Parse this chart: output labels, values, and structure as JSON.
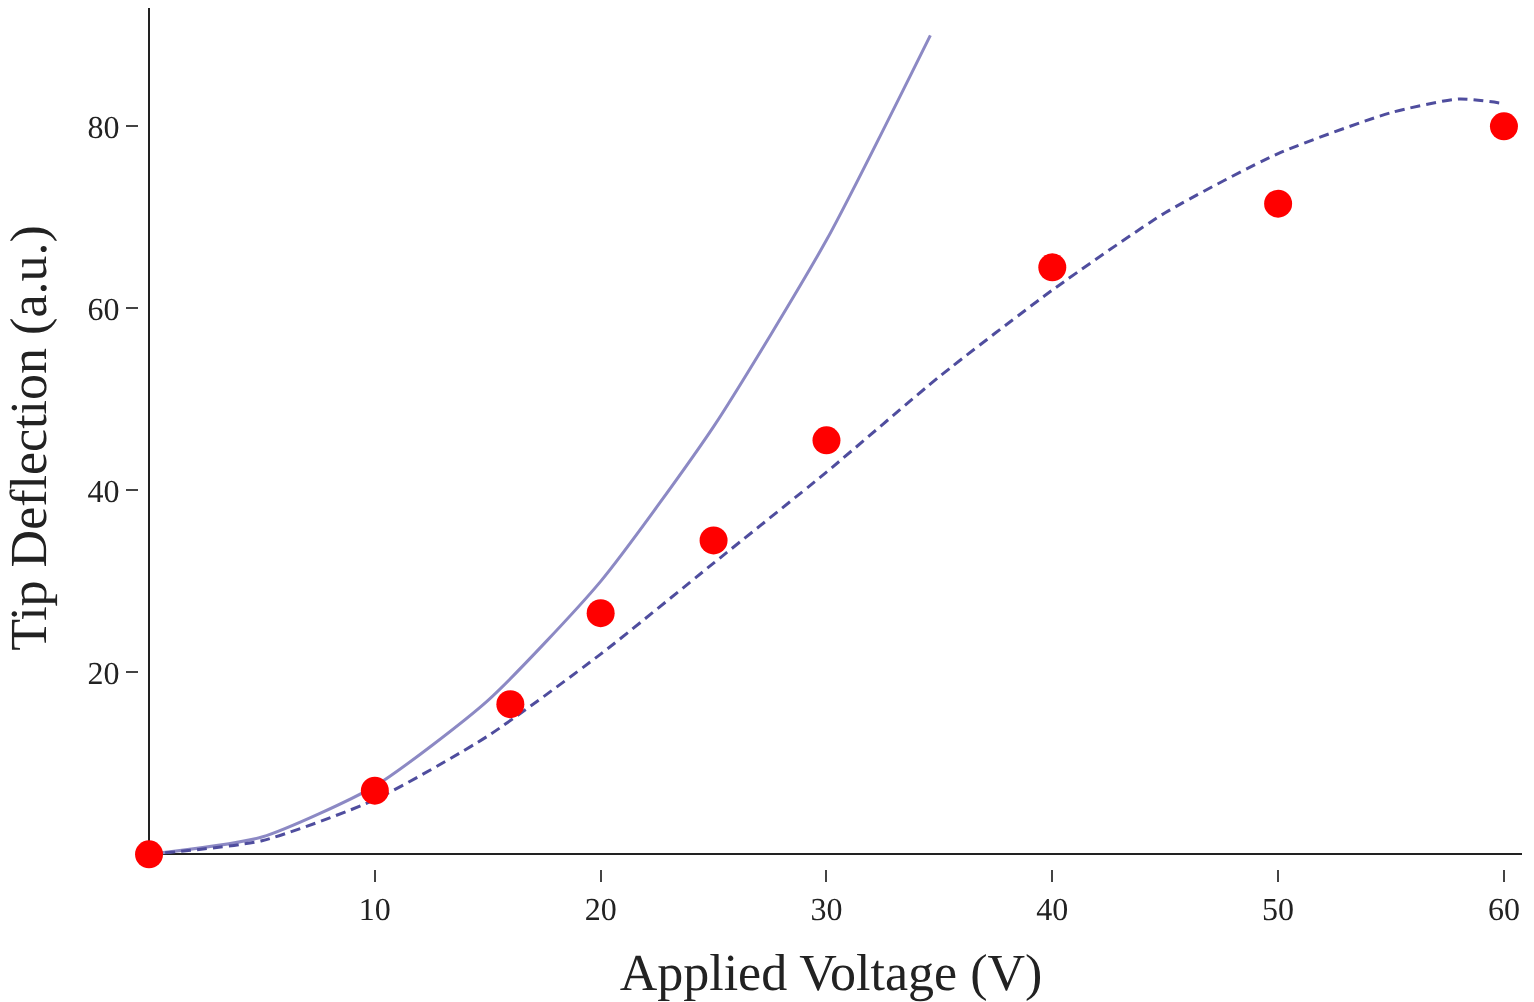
{
  "chart_data": {
    "type": "scatter",
    "xlabel": "Applied Voltage (V)",
    "ylabel": "Tip Deflection (a.u.)",
    "xlim": [
      -0.4,
      60.8
    ],
    "ylim": [
      -1.5,
      93
    ],
    "xticks": [
      10,
      20,
      30,
      40,
      50,
      60
    ],
    "yticks": [
      20,
      40,
      60,
      80
    ],
    "legend": false,
    "series": [
      {
        "type": "line",
        "line_style": "solid",
        "marker": "none",
        "color": "#8c89c4",
        "x": [
          0,
          5,
          10,
          15,
          20,
          25,
          30,
          34.6
        ],
        "values": [
          0,
          1.9,
          7.5,
          16.9,
          30,
          47,
          67.5,
          90
        ]
      },
      {
        "type": "line",
        "line_style": "dashed",
        "marker": "none",
        "color": "#4f4d9e",
        "x": [
          0,
          5,
          10,
          15,
          20,
          25,
          30,
          35,
          40,
          45,
          50,
          55,
          58,
          60
        ],
        "values": [
          0,
          1.5,
          6,
          13,
          22,
          32,
          42,
          52.5,
          62,
          70.5,
          77,
          81.5,
          83,
          82.5
        ]
      },
      {
        "marker": "circle",
        "color": "#ff0000",
        "x": [
          0,
          10,
          16,
          20,
          25,
          30,
          40,
          50,
          60
        ],
        "values": [
          0,
          7,
          16.5,
          26.5,
          34.5,
          45.5,
          64.5,
          71.5,
          80
        ]
      }
    ]
  }
}
